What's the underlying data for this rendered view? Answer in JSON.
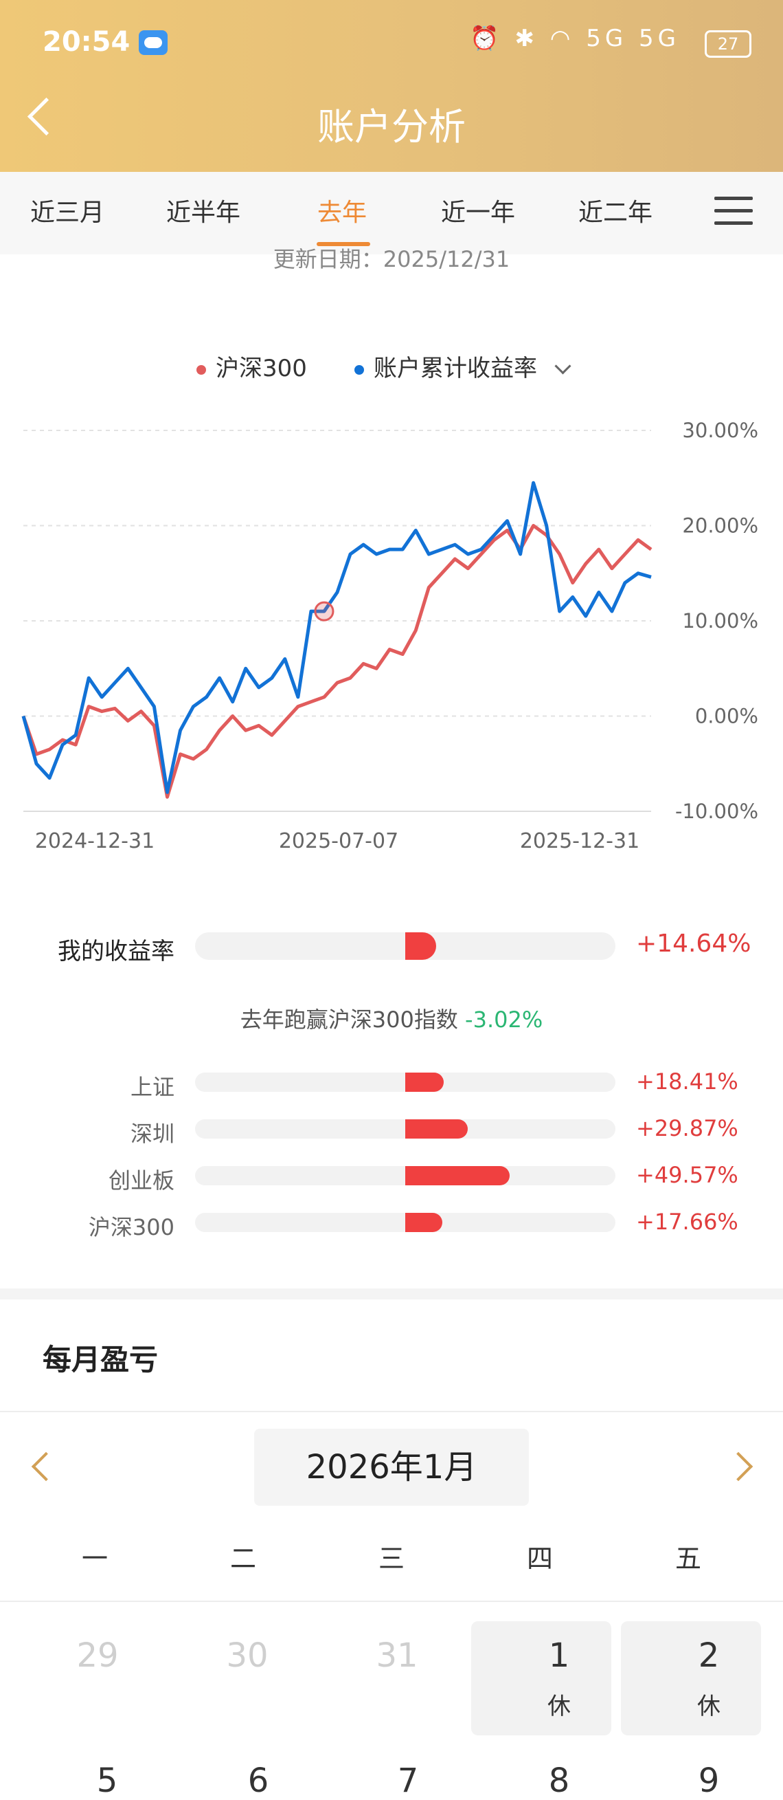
{
  "status": {
    "time": "20:54",
    "icons": "⏰ ✱ ◠ 5G 5G",
    "battery": "27"
  },
  "header": {
    "title": "账户分析"
  },
  "tabs": [
    {
      "label": "近三月"
    },
    {
      "label": "近半年"
    },
    {
      "label": "去年",
      "active": true
    },
    {
      "label": "近一年"
    },
    {
      "label": "近二年"
    }
  ],
  "update_date": "更新日期：2025/12/31",
  "legend": {
    "series1": "沪深300",
    "series2": "账户累计收益率",
    "color1": "#e15c5c",
    "color2": "#1272d6"
  },
  "chart_data": {
    "type": "line",
    "x_ticks": [
      "2024-12-31",
      "2025-07-07",
      "2025-12-31"
    ],
    "y_ticks": [
      "30.00%",
      "20.00%",
      "10.00%",
      "0.00%",
      "-10.00%"
    ],
    "ylim": [
      -10,
      30
    ],
    "grid": true,
    "series": [
      {
        "name": "沪深300",
        "color": "#e15c5c",
        "values": [
          0.0,
          -4.0,
          -3.5,
          -2.5,
          -3.0,
          1.0,
          0.5,
          0.8,
          -0.5,
          0.5,
          -1.0,
          -8.5,
          -4.0,
          -4.5,
          -3.5,
          -1.5,
          0.0,
          -1.5,
          -1.0,
          -2.0,
          -0.5,
          1.0,
          1.5,
          2.0,
          3.5,
          4.0,
          5.5,
          5.0,
          7.0,
          6.5,
          9.0,
          13.5,
          15.0,
          16.5,
          15.5,
          17.0,
          18.5,
          19.5,
          17.5,
          20.0,
          19.0,
          17.0,
          14.0,
          16.0,
          17.5,
          15.5,
          17.0,
          18.5,
          17.5
        ]
      },
      {
        "name": "账户累计收益率",
        "color": "#1272d6",
        "values": [
          0.0,
          -5.0,
          -6.5,
          -3.0,
          -2.0,
          4.0,
          2.0,
          3.5,
          5.0,
          3.0,
          1.0,
          -8.0,
          -1.5,
          1.0,
          2.0,
          4.0,
          1.5,
          5.0,
          3.0,
          4.0,
          6.0,
          2.0,
          11.0,
          11.0,
          13.0,
          17.0,
          18.0,
          17.0,
          17.5,
          17.5,
          19.5,
          17.0,
          17.5,
          18.0,
          17.0,
          17.5,
          19.0,
          20.5,
          17.0,
          24.5,
          20.0,
          11.0,
          12.5,
          10.5,
          13.0,
          11.0,
          14.0,
          15.0,
          14.6
        ]
      }
    ]
  },
  "my_return": {
    "label": "我的收益率",
    "value": "+14.64%",
    "ratio": 0.1464
  },
  "beat": {
    "text": "去年跑赢沪深300指数",
    "value": "-3.02%"
  },
  "indices": [
    {
      "label": "上证",
      "value": "+18.41%",
      "ratio": 0.1841
    },
    {
      "label": "深圳",
      "value": "+29.87%",
      "ratio": 0.2987
    },
    {
      "label": "创业板",
      "value": "+49.57%",
      "ratio": 0.4957
    },
    {
      "label": "沪深300",
      "value": "+17.66%",
      "ratio": 0.1766
    }
  ],
  "monthly": {
    "title": "每月盈亏",
    "month_label": "2026年1月",
    "weekdays": [
      "一",
      "二",
      "三",
      "四",
      "五"
    ],
    "row1": [
      {
        "day": "29",
        "note": ""
      },
      {
        "day": "30",
        "note": ""
      },
      {
        "day": "31",
        "note": ""
      },
      {
        "day": "1",
        "note": "休"
      },
      {
        "day": "2",
        "note": "休"
      }
    ],
    "row2": [
      "5",
      "6",
      "7",
      "8",
      "9"
    ]
  }
}
